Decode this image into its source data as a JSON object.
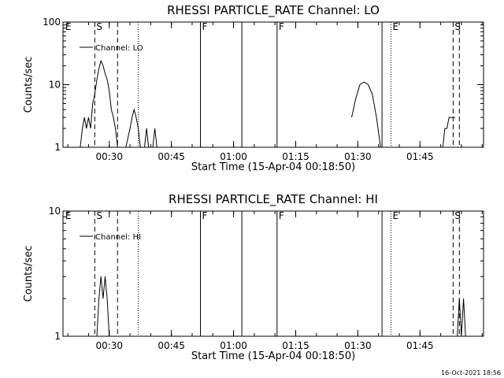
{
  "footer": {
    "timestamp": "16-Oct-2021 18:56"
  },
  "chart_data": [
    {
      "type": "line",
      "title": "RHESSI PARTICLE_RATE Channel: LO",
      "xlabel": "Start Time (15-Apr-04 00:18:50)",
      "ylabel": "Counts/sec",
      "yscale": "log",
      "ylim": [
        1,
        100
      ],
      "xlim": [
        "00:18:50",
        "02:00:20"
      ],
      "xticks": [
        "00:30",
        "00:45",
        "01:00",
        "01:15",
        "01:30",
        "01:45"
      ],
      "yticks": [
        "1",
        "10",
        "100"
      ],
      "legend": {
        "position": "top-left",
        "entries": [
          "Channel: LO"
        ]
      },
      "series": [
        {
          "name": "Channel: LO",
          "x": [
            "00:23:00",
            "00:23:30",
            "00:24:00",
            "00:24:30",
            "00:25:00",
            "00:25:30",
            "00:26:00",
            "00:26:30",
            "00:27:00",
            "00:27:30",
            "00:28:00",
            "00:28:30",
            "00:29:00",
            "00:29:30",
            "00:30:00",
            "00:30:30",
            "00:31:00",
            "00:31:30",
            "00:32:00",
            "00:33:00",
            "00:34:00",
            "00:35:00",
            "00:35:30",
            "00:36:00",
            "00:36:30",
            "00:37:00",
            "00:37:30",
            "00:38:00",
            "00:38:30",
            "00:39:00",
            "00:39:30",
            "00:40:00",
            "00:40:30",
            "00:41:00",
            "00:41:30",
            "00:42:00",
            "00:42:30",
            "01:27:30",
            "01:28:30",
            "01:29:30",
            "01:30:30",
            "01:31:30",
            "01:32:30",
            "01:33:30",
            "01:34:30",
            "01:35:30",
            "01:36:00",
            "01:36:30",
            "01:50:30",
            "01:51:00",
            "01:51:30",
            "01:52:00",
            "01:52:30",
            "01:53:00",
            "01:53:30"
          ],
          "y": [
            1,
            2,
            3,
            2,
            3,
            2,
            5,
            7,
            12,
            18,
            24,
            20,
            15,
            12,
            8,
            4,
            3,
            2,
            1,
            null,
            1,
            2,
            3,
            4,
            3,
            2,
            1,
            null,
            1,
            2,
            1,
            null,
            1,
            2,
            1,
            null,
            1,
            null,
            3,
            6,
            10,
            11,
            10,
            7,
            3,
            1,
            null,
            null,
            1,
            2,
            2,
            3,
            3,
            3,
            3
          ]
        }
      ],
      "markers": [
        {
          "label": "E",
          "time": "00:19:00",
          "style": "none"
        },
        {
          "label": "S",
          "time": "00:26:30",
          "style": "dashed"
        },
        {
          "label": "",
          "time": "00:32:00",
          "style": "dashed"
        },
        {
          "label": "",
          "time": "00:37:00",
          "style": "dotted"
        },
        {
          "label": "F",
          "time": "00:52:00",
          "style": "solid"
        },
        {
          "label": "",
          "time": "01:02:00",
          "style": "solid"
        },
        {
          "label": "F",
          "time": "01:10:30",
          "style": "solid"
        },
        {
          "label": "",
          "time": "01:35:50",
          "style": "solid"
        },
        {
          "label": "E",
          "time": "01:38:00",
          "style": "dotted"
        },
        {
          "label": "S",
          "time": "01:53:00",
          "style": "dashed"
        },
        {
          "label": "",
          "time": "01:54:30",
          "style": "dashed"
        }
      ]
    },
    {
      "type": "line",
      "title": "RHESSI PARTICLE_RATE Channel: HI",
      "xlabel": "Start Time (15-Apr-04 00:18:50)",
      "ylabel": "Counts/sec",
      "yscale": "log",
      "ylim": [
        1,
        10
      ],
      "xlim": [
        "00:18:50",
        "02:00:20"
      ],
      "xticks": [
        "00:30",
        "00:45",
        "01:00",
        "01:15",
        "01:30",
        "01:45"
      ],
      "yticks": [
        "1",
        "10"
      ],
      "legend": {
        "position": "top-left",
        "entries": [
          "Channel: HI"
        ]
      },
      "series": [
        {
          "name": "Channel: HI",
          "x": [
            "00:27:00",
            "00:27:30",
            "00:28:00",
            "00:28:30",
            "00:29:00",
            "00:29:30",
            "00:30:00",
            "01:54:00",
            "01:54:30",
            "01:55:00",
            "01:55:30",
            "01:56:00"
          ],
          "y": [
            1,
            2,
            3,
            2,
            3,
            2,
            1,
            1,
            2,
            1,
            2,
            1
          ]
        }
      ],
      "markers": [
        {
          "label": "E",
          "time": "00:19:00",
          "style": "none"
        },
        {
          "label": "S",
          "time": "00:26:30",
          "style": "dashed"
        },
        {
          "label": "",
          "time": "00:32:00",
          "style": "dashed"
        },
        {
          "label": "",
          "time": "00:37:00",
          "style": "dotted"
        },
        {
          "label": "F",
          "time": "00:52:00",
          "style": "solid"
        },
        {
          "label": "",
          "time": "01:02:00",
          "style": "solid"
        },
        {
          "label": "F",
          "time": "01:10:30",
          "style": "solid"
        },
        {
          "label": "",
          "time": "01:35:50",
          "style": "solid"
        },
        {
          "label": "E",
          "time": "01:38:00",
          "style": "dotted"
        },
        {
          "label": "S",
          "time": "01:53:00",
          "style": "dashed"
        },
        {
          "label": "",
          "time": "01:54:30",
          "style": "dashed"
        }
      ]
    }
  ]
}
